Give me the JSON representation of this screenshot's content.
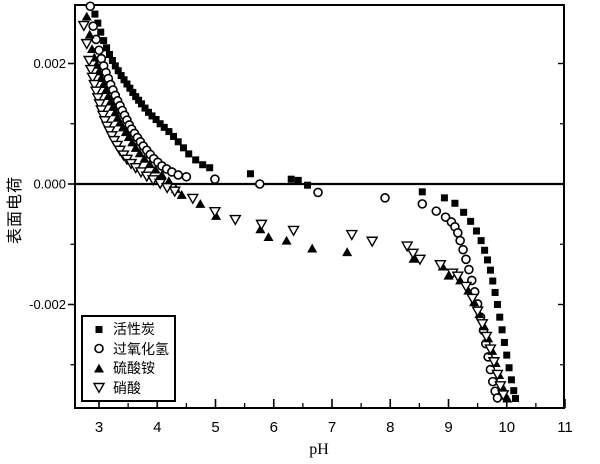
{
  "figure": {
    "background": "#ffffff",
    "foreground": "#000000"
  },
  "axes": {
    "x": {
      "title": "pH",
      "tick_labels": [
        "3",
        "4",
        "5",
        "6",
        "7",
        "8",
        "9",
        "10",
        "11"
      ],
      "tick_values": [
        3,
        4,
        5,
        6,
        7,
        8,
        9,
        10,
        11
      ],
      "minor_tick_values": [
        3.5,
        4.5,
        5.5,
        6.5,
        7.5,
        8.5,
        9.5,
        10.5
      ],
      "range": [
        2.57,
        11
      ]
    },
    "y": {
      "title": "表面电荷",
      "tick_labels": [
        "0.002",
        "0.000",
        "-0.002"
      ],
      "tick_values": [
        0.002,
        0.0,
        -0.002
      ],
      "minor_tick_values": [
        0.001,
        -0.001,
        -0.003
      ],
      "range": [
        -0.0037,
        0.003
      ],
      "zero_line": true
    }
  },
  "legend": {
    "position": "bottom-left",
    "items": [
      {
        "label": "活性炭",
        "marker": "square-filled"
      },
      {
        "label": "过氧化氢",
        "marker": "circle-open"
      },
      {
        "label": "硫酸铵",
        "marker": "triangle-up-filled"
      },
      {
        "label": "硝酸",
        "marker": "triangle-down-open"
      }
    ]
  },
  "chart_data": {
    "type": "scatter",
    "title": "",
    "xlabel": "pH",
    "ylabel": "表面电荷",
    "xlim": [
      2.57,
      11
    ],
    "ylim": [
      -0.0037,
      0.003
    ],
    "grid": false,
    "legend_position": "bottom-left",
    "series": [
      {
        "name": "活性炭",
        "marker": "square-filled",
        "points": [
          [
            2.93,
            0.00282
          ],
          [
            2.98,
            0.00267
          ],
          [
            3.03,
            0.00252
          ],
          [
            3.08,
            0.00238
          ],
          [
            3.13,
            0.00226
          ],
          [
            3.18,
            0.00215
          ],
          [
            3.23,
            0.00205
          ],
          [
            3.28,
            0.00196
          ],
          [
            3.33,
            0.00188
          ],
          [
            3.38,
            0.0018
          ],
          [
            3.43,
            0.00173
          ],
          [
            3.48,
            0.00166
          ],
          [
            3.53,
            0.00159
          ],
          [
            3.58,
            0.00152
          ],
          [
            3.63,
            0.00145
          ],
          [
            3.68,
            0.00139
          ],
          [
            3.73,
            0.00133
          ],
          [
            3.79,
            0.00126
          ],
          [
            3.85,
            0.00119
          ],
          [
            3.91,
            0.00113
          ],
          [
            3.98,
            0.00107
          ],
          [
            4.05,
            0.001
          ],
          [
            4.12,
            0.00094
          ],
          [
            4.2,
            0.00087
          ],
          [
            4.28,
            0.00079
          ],
          [
            4.36,
            0.0007
          ],
          [
            4.45,
            0.0006
          ],
          [
            4.54,
            0.0005
          ],
          [
            4.66,
            0.0004
          ],
          [
            4.78,
            0.00032
          ],
          [
            4.9,
            0.00027
          ],
          [
            5.6,
            0.00017
          ],
          [
            6.3,
            8e-05
          ],
          [
            6.42,
            6e-05
          ],
          [
            6.58,
            -2e-05
          ],
          [
            8.55,
            -0.00013
          ],
          [
            8.93,
            -0.00023
          ],
          [
            9.11,
            -0.00032
          ],
          [
            9.26,
            -0.00047
          ],
          [
            9.38,
            -0.00062
          ],
          [
            9.48,
            -0.00078
          ],
          [
            9.56,
            -0.00094
          ],
          [
            9.62,
            -0.0011
          ],
          [
            9.67,
            -0.00126
          ],
          [
            9.72,
            -0.00143
          ],
          [
            9.76,
            -0.00161
          ],
          [
            9.8,
            -0.0018
          ],
          [
            9.84,
            -0.002
          ],
          [
            9.88,
            -0.00221
          ],
          [
            9.92,
            -0.00242
          ],
          [
            9.96,
            -0.00263
          ],
          [
            10.0,
            -0.00284
          ],
          [
            10.04,
            -0.00305
          ],
          [
            10.08,
            -0.00325
          ],
          [
            10.12,
            -0.00343
          ],
          [
            10.15,
            -0.00356
          ]
        ]
      },
      {
        "name": "过氧化氢",
        "marker": "circle-open",
        "points": [
          [
            2.85,
            0.00295
          ],
          [
            2.9,
            0.00262
          ],
          [
            2.95,
            0.0024
          ],
          [
            3.0,
            0.00222
          ],
          [
            3.04,
            0.00208
          ],
          [
            3.08,
            0.00196
          ],
          [
            3.12,
            0.00185
          ],
          [
            3.16,
            0.00175
          ],
          [
            3.2,
            0.00165
          ],
          [
            3.24,
            0.00156
          ],
          [
            3.28,
            0.00147
          ],
          [
            3.32,
            0.00138
          ],
          [
            3.36,
            0.0013
          ],
          [
            3.4,
            0.00122
          ],
          [
            3.44,
            0.00114
          ],
          [
            3.48,
            0.00106
          ],
          [
            3.52,
            0.00098
          ],
          [
            3.56,
            0.00091
          ],
          [
            3.61,
            0.00084
          ],
          [
            3.66,
            0.00077
          ],
          [
            3.71,
            0.0007
          ],
          [
            3.76,
            0.00063
          ],
          [
            3.82,
            0.00056
          ],
          [
            3.88,
            0.00049
          ],
          [
            3.94,
            0.00042
          ],
          [
            4.01,
            0.00036
          ],
          [
            4.08,
            0.0003
          ],
          [
            4.16,
            0.00025
          ],
          [
            4.25,
            0.0002
          ],
          [
            4.36,
            0.00015
          ],
          [
            4.5,
            0.00012
          ],
          [
            4.99,
            8e-05
          ],
          [
            5.76,
            0.0
          ],
          [
            6.76,
            -0.00014
          ],
          [
            7.91,
            -0.00023
          ],
          [
            8.55,
            -0.00033
          ],
          [
            8.79,
            -0.00045
          ],
          [
            8.95,
            -0.00055
          ],
          [
            9.05,
            -0.00063
          ],
          [
            9.11,
            -0.00071
          ],
          [
            9.16,
            -0.00081
          ],
          [
            9.2,
            -0.00094
          ],
          [
            9.25,
            -0.00109
          ],
          [
            9.3,
            -0.00125
          ],
          [
            9.35,
            -0.00142
          ],
          [
            9.4,
            -0.0016
          ],
          [
            9.45,
            -0.00179
          ],
          [
            9.5,
            -0.00199
          ],
          [
            9.55,
            -0.00221
          ],
          [
            9.6,
            -0.00243
          ],
          [
            9.64,
            -0.00265
          ],
          [
            9.68,
            -0.00287
          ],
          [
            9.72,
            -0.00308
          ],
          [
            9.76,
            -0.00328
          ],
          [
            9.8,
            -0.00344
          ],
          [
            9.84,
            -0.00355
          ]
        ]
      },
      {
        "name": "硫酸铵",
        "marker": "triangle-up-filled",
        "points": [
          [
            2.79,
            0.00278
          ],
          [
            2.84,
            0.00248
          ],
          [
            2.88,
            0.00224
          ],
          [
            2.92,
            0.0021
          ],
          [
            2.96,
            0.00198
          ],
          [
            3.0,
            0.00187
          ],
          [
            3.04,
            0.00176
          ],
          [
            3.08,
            0.00166
          ],
          [
            3.12,
            0.00156
          ],
          [
            3.16,
            0.00146
          ],
          [
            3.2,
            0.00137
          ],
          [
            3.24,
            0.00128
          ],
          [
            3.28,
            0.00119
          ],
          [
            3.32,
            0.0011
          ],
          [
            3.36,
            0.00102
          ],
          [
            3.41,
            0.00094
          ],
          [
            3.46,
            0.00086
          ],
          [
            3.51,
            0.00078
          ],
          [
            3.57,
            0.00069
          ],
          [
            3.63,
            0.0006
          ],
          [
            3.7,
            0.00051
          ],
          [
            3.78,
            0.00042
          ],
          [
            3.87,
            0.00033
          ],
          [
            3.97,
            0.00024
          ],
          [
            4.08,
            0.00015
          ],
          [
            4.2,
            5e-05
          ],
          [
            4.32,
            -8e-05
          ],
          [
            4.42,
            -0.00018
          ],
          [
            4.74,
            -0.00033
          ],
          [
            5.01,
            -0.00053
          ],
          [
            5.77,
            -0.00075
          ],
          [
            5.91,
            -0.00088
          ],
          [
            6.22,
            -0.00094
          ],
          [
            6.66,
            -0.00107
          ],
          [
            7.26,
            -0.00113
          ],
          [
            8.4,
            -0.00124
          ],
          [
            8.9,
            -0.00137
          ],
          [
            9.0,
            -0.00152
          ],
          [
            9.2,
            -0.0016
          ],
          [
            9.34,
            -0.00177
          ],
          [
            9.44,
            -0.00196
          ],
          [
            9.53,
            -0.00216
          ],
          [
            9.61,
            -0.00236
          ],
          [
            9.68,
            -0.00256
          ],
          [
            9.75,
            -0.00277
          ],
          [
            9.81,
            -0.00297
          ],
          [
            9.87,
            -0.00317
          ],
          [
            9.92,
            -0.00336
          ],
          [
            9.97,
            -0.00351
          ],
          [
            10.01,
            -0.00356
          ]
        ]
      },
      {
        "name": "硝酸",
        "marker": "triangle-down-open",
        "points": [
          [
            2.74,
            0.00263
          ],
          [
            2.79,
            0.00233
          ],
          [
            2.83,
            0.00205
          ],
          [
            2.86,
            0.0019
          ],
          [
            2.89,
            0.00177
          ],
          [
            2.92,
            0.00165
          ],
          [
            2.95,
            0.00154
          ],
          [
            2.98,
            0.00143
          ],
          [
            3.01,
            0.00133
          ],
          [
            3.04,
            0.00123
          ],
          [
            3.07,
            0.00114
          ],
          [
            3.1,
            0.00105
          ],
          [
            3.14,
            0.00096
          ],
          [
            3.18,
            0.00088
          ],
          [
            3.22,
            0.0008
          ],
          [
            3.26,
            0.00072
          ],
          [
            3.31,
            0.00064
          ],
          [
            3.36,
            0.00056
          ],
          [
            3.42,
            0.00048
          ],
          [
            3.48,
            0.00041
          ],
          [
            3.55,
            0.00034
          ],
          [
            3.63,
            0.00027
          ],
          [
            3.72,
            0.0002
          ],
          [
            3.82,
            0.00013
          ],
          [
            3.93,
            7e-05
          ],
          [
            4.05,
            1e-05
          ],
          [
            4.17,
            -6e-05
          ],
          [
            4.3,
            -0.00012
          ],
          [
            4.61,
            -0.00024
          ],
          [
            4.99,
            -0.00046
          ],
          [
            5.34,
            -0.00059
          ],
          [
            5.79,
            -0.00067
          ],
          [
            6.34,
            -0.00077
          ],
          [
            7.34,
            -0.00084
          ],
          [
            7.69,
            -0.00095
          ],
          [
            8.29,
            -0.00103
          ],
          [
            8.39,
            -0.00115
          ],
          [
            8.51,
            -0.00125
          ],
          [
            8.86,
            -0.00134
          ],
          [
            9.07,
            -0.00148
          ],
          [
            9.16,
            -0.00153
          ],
          [
            9.3,
            -0.0017
          ],
          [
            9.41,
            -0.0019
          ],
          [
            9.5,
            -0.00211
          ],
          [
            9.58,
            -0.00232
          ],
          [
            9.65,
            -0.00253
          ],
          [
            9.72,
            -0.00274
          ],
          [
            9.78,
            -0.00295
          ],
          [
            9.84,
            -0.00316
          ],
          [
            9.89,
            -0.00335
          ],
          [
            9.94,
            -0.0035
          ]
        ]
      }
    ]
  }
}
